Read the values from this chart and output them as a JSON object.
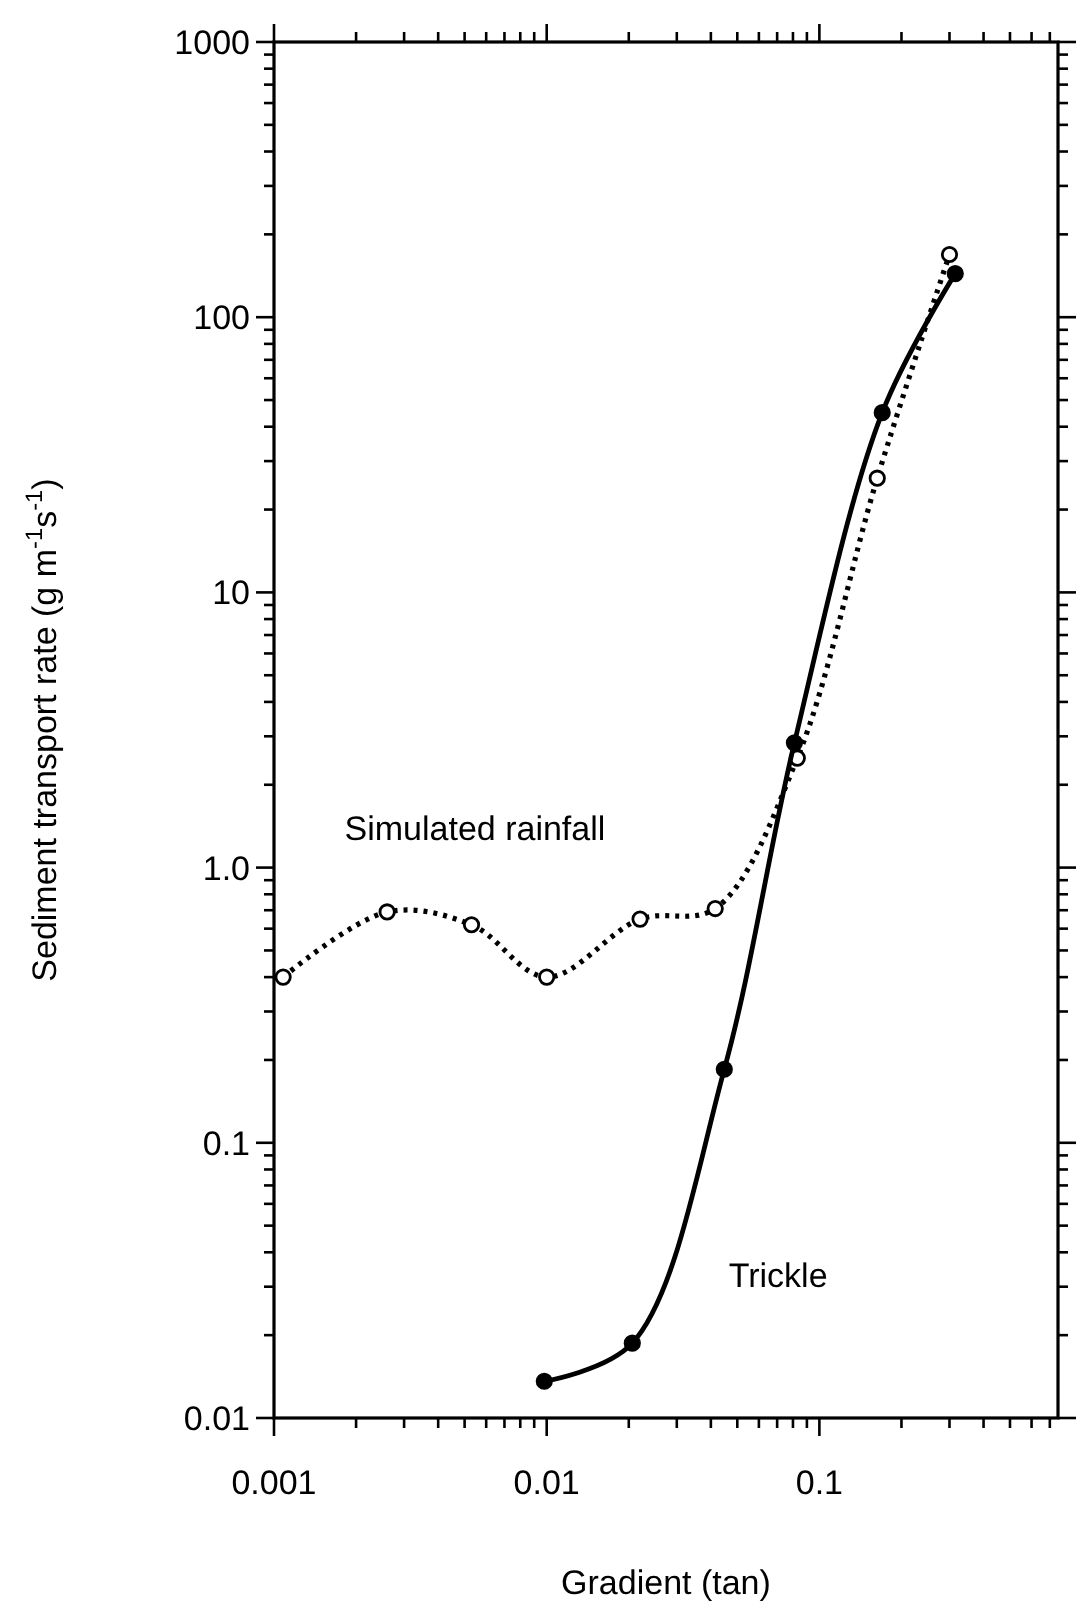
{
  "chart_data": {
    "type": "line",
    "xlabel": "Gradient (tan)",
    "ylabel": "Sediment transport rate (g m$^{-1}$s$^{-1}$)",
    "log": "xy",
    "xlim": [
      0.001,
      0.75
    ],
    "ylim": [
      0.01,
      1000
    ],
    "xticks": [
      0.001,
      {
        "value": 0.002,
        "label": null
      },
      {
        "value": 0.003,
        "label": null
      },
      {
        "value": 0.004,
        "label": null
      },
      {
        "value": 0.005,
        "label": null
      },
      {
        "value": 0.006,
        "label": null
      },
      {
        "value": 0.007,
        "label": null
      },
      {
        "value": 0.008,
        "label": null
      },
      {
        "value": 0.009,
        "label": null
      },
      0.01,
      {
        "value": 0.02,
        "label": null
      },
      {
        "value": 0.03,
        "label": null
      },
      {
        "value": 0.04,
        "label": null
      },
      {
        "value": 0.05,
        "label": null
      },
      {
        "value": 0.06,
        "label": null
      },
      {
        "value": 0.07,
        "label": null
      },
      {
        "value": 0.08,
        "label": null
      },
      {
        "value": 0.09,
        "label": null
      },
      0.1,
      {
        "value": 0.2,
        "label": null
      },
      {
        "value": 0.3,
        "label": null
      },
      {
        "value": 0.4,
        "label": null
      },
      {
        "value": 0.5,
        "label": null
      },
      {
        "value": 0.6,
        "label": null
      },
      {
        "value": 0.7,
        "label": null
      }
    ],
    "yticks": [
      0.01,
      {
        "value": 0.02,
        "label": null
      },
      {
        "value": 0.03,
        "label": null
      },
      {
        "value": 0.04,
        "label": null
      },
      {
        "value": 0.05,
        "label": null
      },
      {
        "value": 0.06,
        "label": null
      },
      {
        "value": 0.07,
        "label": null
      },
      {
        "value": 0.08,
        "label": null
      },
      {
        "value": 0.09,
        "label": null
      },
      0.1,
      {
        "value": 0.2,
        "label": null
      },
      {
        "value": 0.3,
        "label": null
      },
      {
        "value": 0.4,
        "label": null
      },
      {
        "value": 0.5,
        "label": null
      },
      {
        "value": 0.6,
        "label": null
      },
      {
        "value": 0.7,
        "label": null
      },
      {
        "value": 0.8,
        "label": null
      },
      {
        "value": 0.9,
        "label": null
      },
      {
        "value": 1,
        "label": "1.0"
      },
      {
        "value": 2,
        "label": null
      },
      {
        "value": 3,
        "label": null
      },
      {
        "value": 4,
        "label": null
      },
      {
        "value": 5,
        "label": null
      },
      {
        "value": 6,
        "label": null
      },
      {
        "value": 7,
        "label": null
      },
      {
        "value": 8,
        "label": null
      },
      {
        "value": 9,
        "label": null
      },
      10,
      {
        "value": 20,
        "label": null
      },
      {
        "value": 30,
        "label": null
      },
      {
        "value": 40,
        "label": null
      },
      {
        "value": 50,
        "label": null
      },
      {
        "value": 60,
        "label": null
      },
      {
        "value": 70,
        "label": null
      },
      {
        "value": 80,
        "label": null
      },
      {
        "value": 90,
        "label": null
      },
      100,
      {
        "value": 200,
        "label": null
      },
      {
        "value": 300,
        "label": null
      },
      {
        "value": 400,
        "label": null
      },
      {
        "value": 500,
        "label": null
      },
      {
        "value": 600,
        "label": null
      },
      {
        "value": 700,
        "label": null
      },
      {
        "value": 800,
        "label": null
      },
      {
        "value": 900,
        "label": null
      },
      1000
    ],
    "series": [
      {
        "name": "Simulated rainfall",
        "color": "#000000",
        "marker": "circle",
        "line_style": "dotted",
        "x": [
          0.00108,
          0.0026,
          0.0053,
          0.01,
          0.022,
          0.0415,
          0.083,
          0.163,
          0.3
        ],
        "values": [
          0.4,
          0.69,
          0.62,
          0.4,
          0.65,
          0.71,
          2.5,
          26,
          169
        ]
      },
      {
        "name": "Trickle",
        "color": "#000000",
        "marker": "circle",
        "line_style": "solid",
        "x": [
          0.0098,
          0.0206,
          0.0448,
          0.081,
          0.17,
          0.315
        ],
        "values": [
          0.0136,
          0.0187,
          0.185,
          2.84,
          45,
          144
        ]
      }
    ]
  }
}
